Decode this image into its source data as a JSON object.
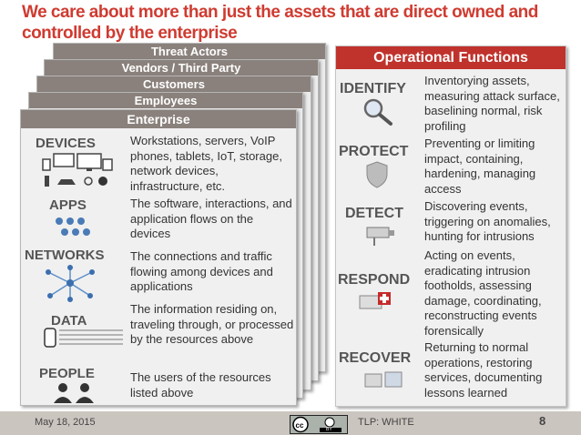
{
  "title": "We care about more than just the assets that are direct owned and controlled by the enterprise",
  "layers": [
    "Threat Actors",
    "Vendors / Third Party",
    "Customers",
    "Employees"
  ],
  "enterprise": {
    "header": "Enterprise",
    "rows": [
      {
        "label": "DEVICES",
        "text": "Workstations, servers, VoIP phones, tablets, IoT, storage, network devices, infrastructure, etc."
      },
      {
        "label": "APPS",
        "text": "The software, interactions, and application flows on the devices"
      },
      {
        "label": "NETWORKS",
        "text": "The connections and traffic flowing among devices and applications"
      },
      {
        "label": "DATA",
        "text": "The information residing on, traveling through, or processed by the resources above"
      },
      {
        "label": "PEOPLE",
        "text": "The users of the resources listed above"
      }
    ]
  },
  "operational": {
    "header": "Operational Functions",
    "rows": [
      {
        "label": "IDENTIFY",
        "text": "Inventorying assets, measuring attack surface, baselining normal, risk profiling"
      },
      {
        "label": "PROTECT",
        "text": "Preventing or limiting impact, containing, hardening, managing access"
      },
      {
        "label": "DETECT",
        "text": "Discovering events, triggering on anomalies, hunting for intrusions"
      },
      {
        "label": "RESPOND",
        "text": "Acting on events, eradicating intrusion footholds, assessing damage, coordinating, reconstructing events forensically"
      },
      {
        "label": "RECOVER",
        "text": "Returning to normal operations, restoring services, documenting lessons learned"
      }
    ]
  },
  "footer": {
    "date": "May 18, 2015",
    "tlp": "TLP: WHITE",
    "page": "8",
    "license_badge": "BY"
  },
  "colors": {
    "accent": "#cf3b31",
    "header_bg": "#8a817c",
    "ops_header": "#c0322c"
  },
  "icons": [
    "devices-icon",
    "apps-icon",
    "network-icon",
    "data-icon",
    "people-icon",
    "magnifier-icon",
    "shield-icon",
    "camera-icon",
    "first-aid-icon",
    "recover-icon",
    "cc-by-icon"
  ]
}
